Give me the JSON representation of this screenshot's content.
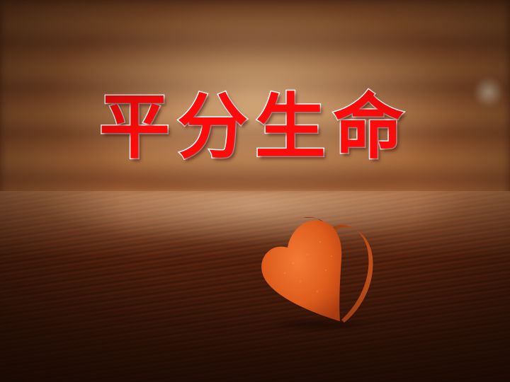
{
  "slide": {
    "title": "平分生命"
  },
  "colors": {
    "title_fill": "#ff0b0b",
    "title_outline": "#ffffff",
    "heart": "#e0601e",
    "wood": "#8a4e2a"
  },
  "icons": {
    "heart": "heart-icon"
  }
}
